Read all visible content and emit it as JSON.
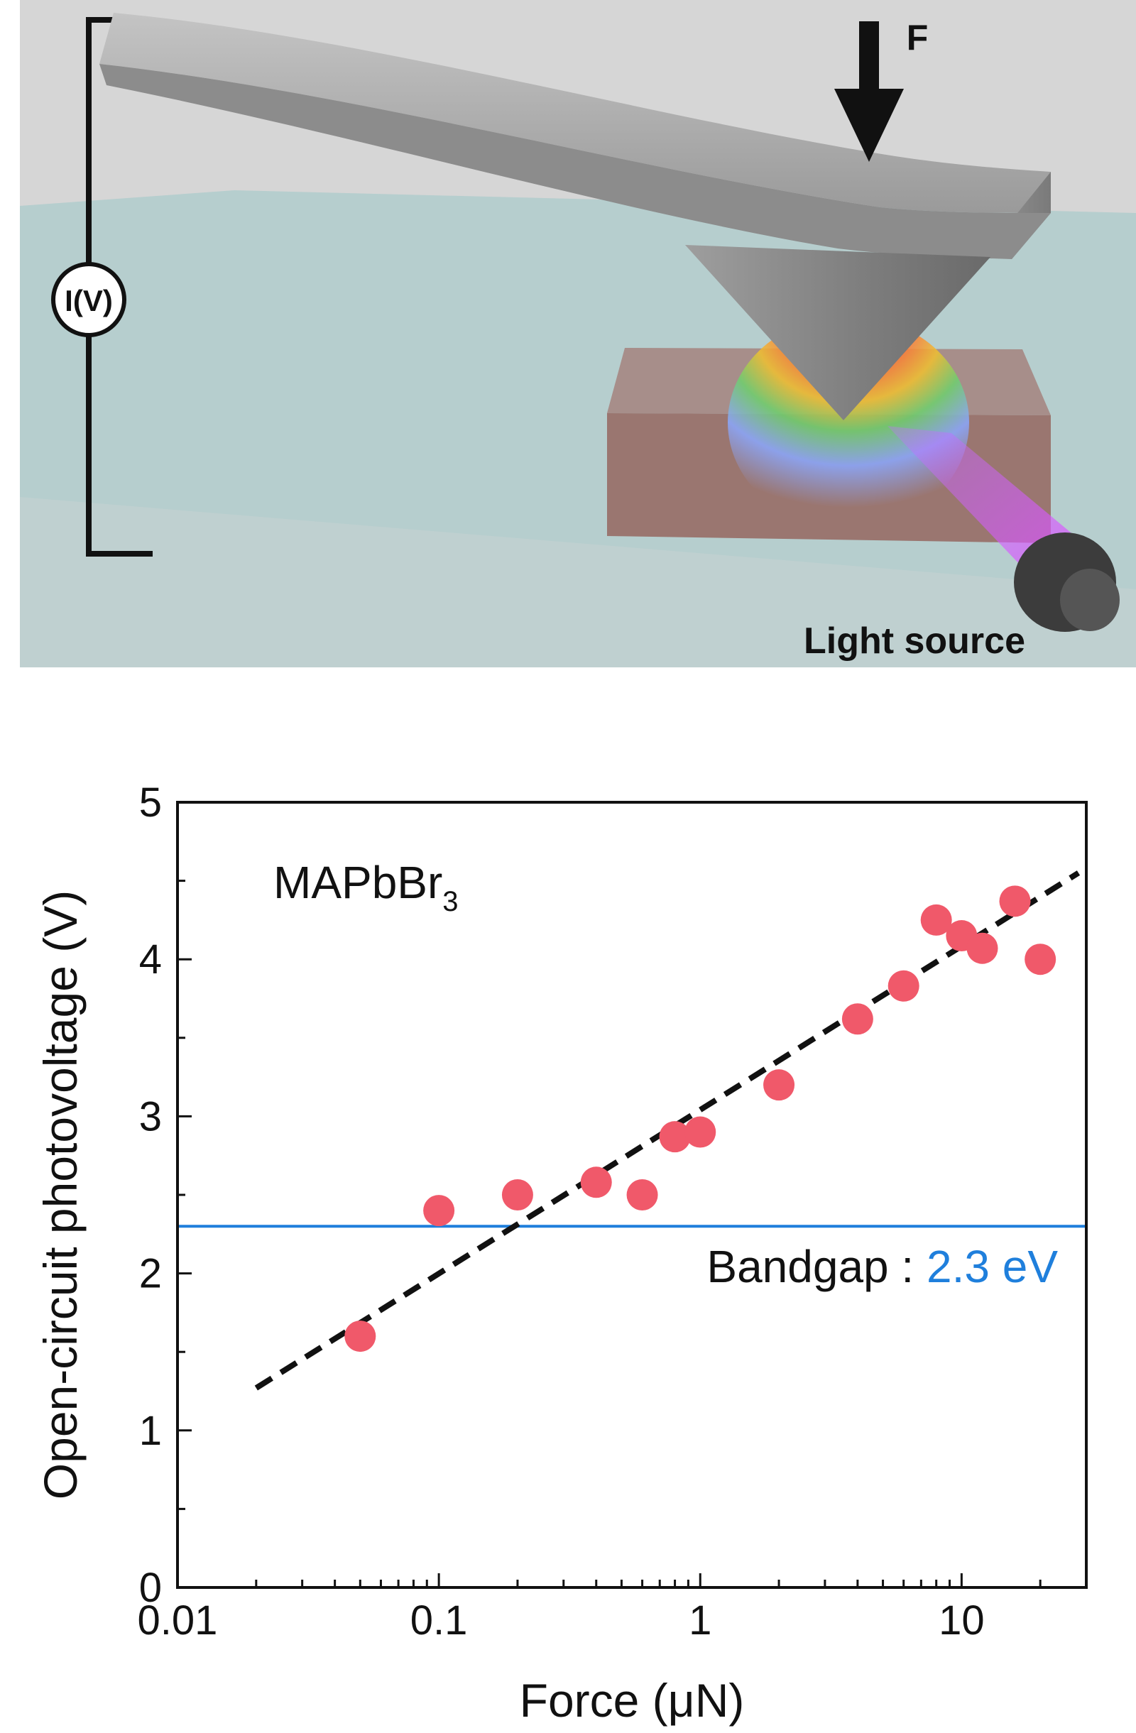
{
  "schematic": {
    "force_label": "F",
    "meter_label": "I(V)",
    "light_label": "Light source"
  },
  "chart_data": {
    "type": "scatter",
    "xlabel": "Force (μN)",
    "ylabel": "Open-circuit photovoltage (V)",
    "xscale": "log",
    "xlim": [
      0.01,
      30
    ],
    "ylim": [
      0,
      5
    ],
    "x_ticks": [
      "0.01",
      "0.1",
      "1",
      "10"
    ],
    "x_tick_values": [
      0.01,
      0.1,
      1,
      10
    ],
    "y_ticks": [
      "0",
      "1",
      "2",
      "3",
      "4",
      "5"
    ],
    "y_tick_values": [
      0,
      1,
      2,
      3,
      4,
      5
    ],
    "annotation": {
      "text": "MAPbBr",
      "subscript": "3"
    },
    "points": {
      "x": [
        0.05,
        0.1,
        0.2,
        0.4,
        0.6,
        0.8,
        1.0,
        2.0,
        4.0,
        6.0,
        8.0,
        10.0,
        12.0,
        16.0,
        20.0
      ],
      "y": [
        1.6,
        2.4,
        2.5,
        2.58,
        2.5,
        2.87,
        2.9,
        3.2,
        3.62,
        3.83,
        4.25,
        4.15,
        4.07,
        4.37,
        4.0
      ],
      "color": "#f0596a"
    },
    "fit_line": {
      "x": [
        0.02,
        28
      ],
      "y": [
        1.27,
        4.55
      ],
      "color": "#111111",
      "style": "dashed"
    },
    "bandgap_line": {
      "y": 2.3,
      "color": "#1f7fdc"
    },
    "bandgap_label": {
      "prefix": "Bandgap : ",
      "value": "2.3 eV",
      "value_color": "#1f7fdc"
    }
  }
}
